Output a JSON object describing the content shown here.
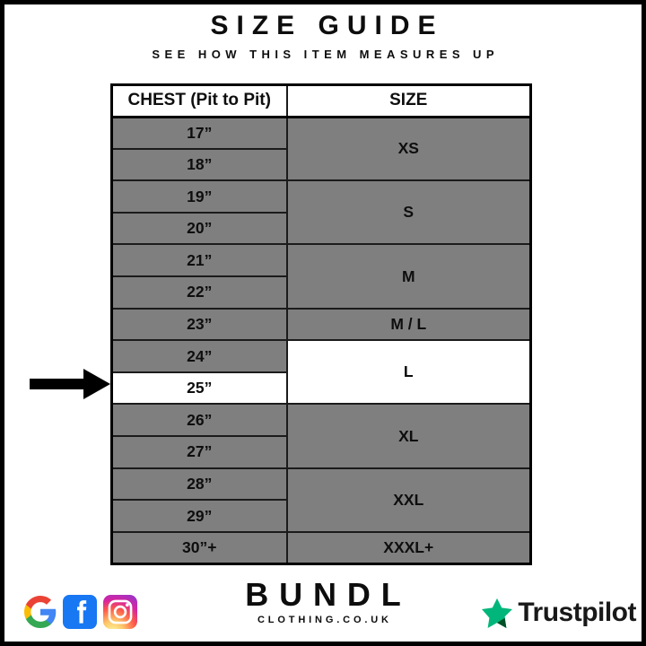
{
  "header": {
    "title": "SIZE GUIDE",
    "subtitle": "SEE HOW THIS ITEM MEASURES UP"
  },
  "table": {
    "columns": [
      "CHEST (Pit to Pit)",
      "SIZE"
    ],
    "groups": [
      {
        "size": "XS",
        "chest": [
          "17”",
          "18”"
        ]
      },
      {
        "size": "S",
        "chest": [
          "19”",
          "20”"
        ]
      },
      {
        "size": "M",
        "chest": [
          "21”",
          "22”"
        ]
      },
      {
        "size": "M / L",
        "chest": [
          "23”"
        ]
      },
      {
        "size": "L",
        "chest": [
          "24”",
          "25”"
        ],
        "size_highlighted": true,
        "highlighted_chest": "25”"
      },
      {
        "size": "XL",
        "chest": [
          "26”",
          "27”"
        ]
      },
      {
        "size": "XXL",
        "chest": [
          "28”",
          "29”"
        ]
      },
      {
        "size": "XXXL+",
        "chest": [
          "30”+"
        ]
      }
    ],
    "row_color": "#7f7f7f",
    "highlight_color": "#ffffff"
  },
  "arrow": {
    "points_to_chest": "25”"
  },
  "footer": {
    "brand_name": "BUNDL",
    "brand_domain": "CLOTHING.CO.UK",
    "social_icons": [
      "google",
      "facebook",
      "instagram"
    ],
    "trustpilot_label": "Trustpilot"
  },
  "colors": {
    "table_gray": "#7f7f7f",
    "border_black": "#000000",
    "trustpilot_green": "#00B67A",
    "trustpilot_dark_green": "#005128",
    "facebook_blue": "#1877F2"
  }
}
